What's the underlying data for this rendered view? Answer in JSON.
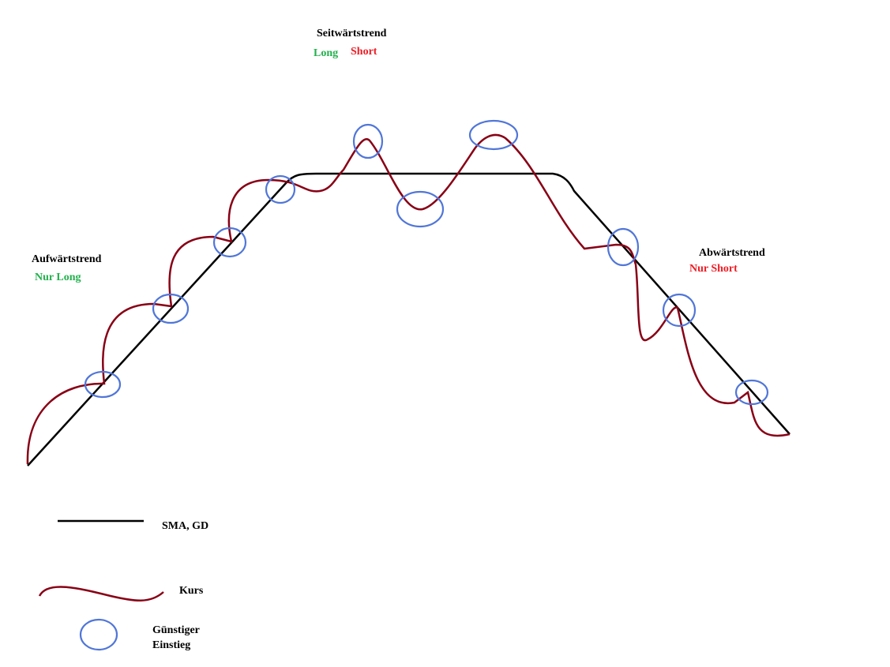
{
  "phases": {
    "sideways": {
      "title": "Seitwärtstrend",
      "long": "Long",
      "short": "Short"
    },
    "up": {
      "title": "Aufwärtstrend",
      "bias": "Nur Long"
    },
    "down": {
      "title": "Abwärtstrend",
      "bias": "Nur Short"
    }
  },
  "legend": {
    "sma": "SMA, GD",
    "price": "Kurs",
    "entry": [
      "Günstiger",
      "Einstieg"
    ]
  }
}
